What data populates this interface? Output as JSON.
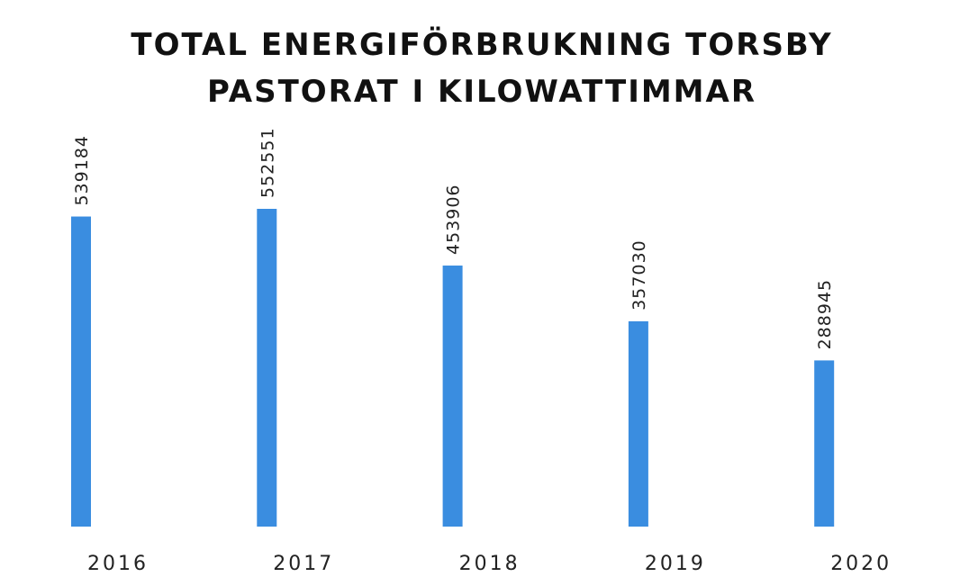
{
  "chart_data": {
    "type": "bar",
    "title": "TOTAL ENERGIFÖRBRUKNING TORSBY PASTORAT I KILOWATTIMMAR",
    "categories": [
      "2016",
      "2017",
      "2018",
      "2019",
      "2020"
    ],
    "values": [
      539184,
      552551,
      453906,
      357030,
      288945
    ],
    "color": "#3a8de0"
  }
}
